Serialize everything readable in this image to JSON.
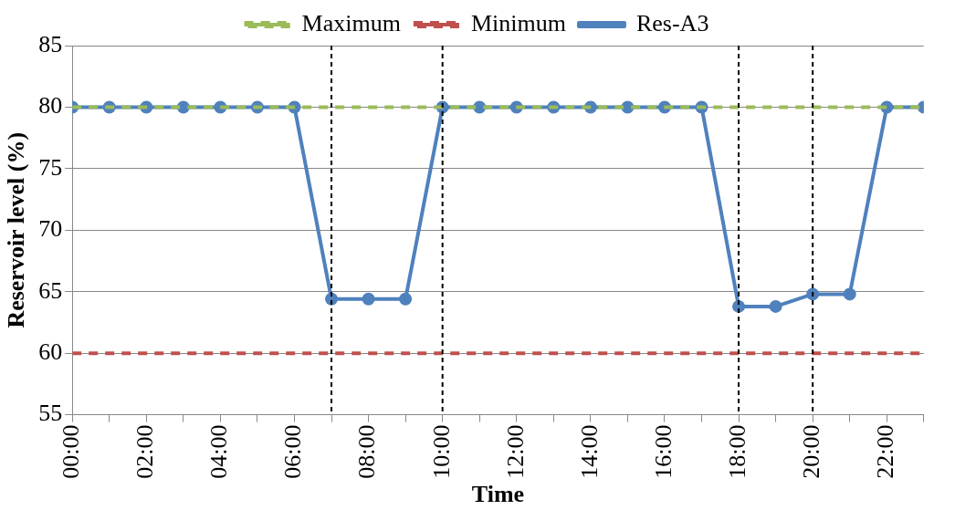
{
  "chart_data": {
    "type": "line",
    "xlabel": "Time",
    "ylabel": "Reservoir level (%)",
    "x": [
      0,
      1,
      2,
      3,
      4,
      5,
      6,
      7,
      8,
      9,
      10,
      11,
      12,
      13,
      14,
      15,
      16,
      17,
      18,
      19,
      20,
      21,
      22,
      23
    ],
    "series": [
      {
        "name": "Res-A3",
        "color": "#4f81bd",
        "marker": "circle",
        "line_style": "solid",
        "values": [
          80,
          80,
          80,
          80,
          80,
          80,
          80,
          64.4,
          64.4,
          64.4,
          80,
          80,
          80,
          80,
          80,
          80,
          80,
          80,
          63.8,
          63.8,
          64.8,
          64.8,
          80,
          80
        ]
      },
      {
        "name": "Minimum",
        "color": "#c0504d",
        "marker": "none",
        "line_style": "dashed",
        "values": [
          60,
          60,
          60,
          60,
          60,
          60,
          60,
          60,
          60,
          60,
          60,
          60,
          60,
          60,
          60,
          60,
          60,
          60,
          60,
          60,
          60,
          60,
          60,
          60
        ]
      },
      {
        "name": "Maximum",
        "color": "#9bbb59",
        "marker": "none",
        "line_style": "dashed",
        "values": [
          80,
          80,
          80,
          80,
          80,
          80,
          80,
          80,
          80,
          80,
          80,
          80,
          80,
          80,
          80,
          80,
          80,
          80,
          80,
          80,
          80,
          80,
          80,
          80
        ]
      }
    ],
    "xlim": [
      0,
      23
    ],
    "xticks": [
      {
        "value": 0,
        "label": "00:00"
      },
      {
        "value": 1,
        "label": null
      },
      {
        "value": 2,
        "label": "02:00"
      },
      {
        "value": 3,
        "label": null
      },
      {
        "value": 4,
        "label": "04:00"
      },
      {
        "value": 5,
        "label": null
      },
      {
        "value": 6,
        "label": "06:00"
      },
      {
        "value": 7,
        "label": null
      },
      {
        "value": 8,
        "label": "08:00"
      },
      {
        "value": 9,
        "label": null
      },
      {
        "value": 10,
        "label": "10:00"
      },
      {
        "value": 11,
        "label": null
      },
      {
        "value": 12,
        "label": "12:00"
      },
      {
        "value": 13,
        "label": null
      },
      {
        "value": 14,
        "label": "14:00"
      },
      {
        "value": 15,
        "label": null
      },
      {
        "value": 16,
        "label": "16:00"
      },
      {
        "value": 17,
        "label": null
      },
      {
        "value": 18,
        "label": "18:00"
      },
      {
        "value": 19,
        "label": null
      },
      {
        "value": 20,
        "label": "20:00"
      },
      {
        "value": 21,
        "label": null
      },
      {
        "value": 22,
        "label": "22:00"
      },
      {
        "value": 23,
        "label": null
      }
    ],
    "ylim": [
      55,
      85
    ],
    "yticks": [
      55,
      60,
      65,
      70,
      75,
      80,
      85
    ],
    "grid": "y",
    "legend": "top",
    "ref_lines": [
      {
        "axis": "x",
        "value": 7,
        "color": "#000000",
        "line_style": "dashed"
      },
      {
        "axis": "x",
        "value": 10,
        "color": "#000000",
        "line_style": "dashed"
      },
      {
        "axis": "x",
        "value": 18,
        "color": "#000000",
        "line_style": "dashed"
      },
      {
        "axis": "x",
        "value": 20,
        "color": "#000000",
        "line_style": "dashed"
      }
    ]
  }
}
